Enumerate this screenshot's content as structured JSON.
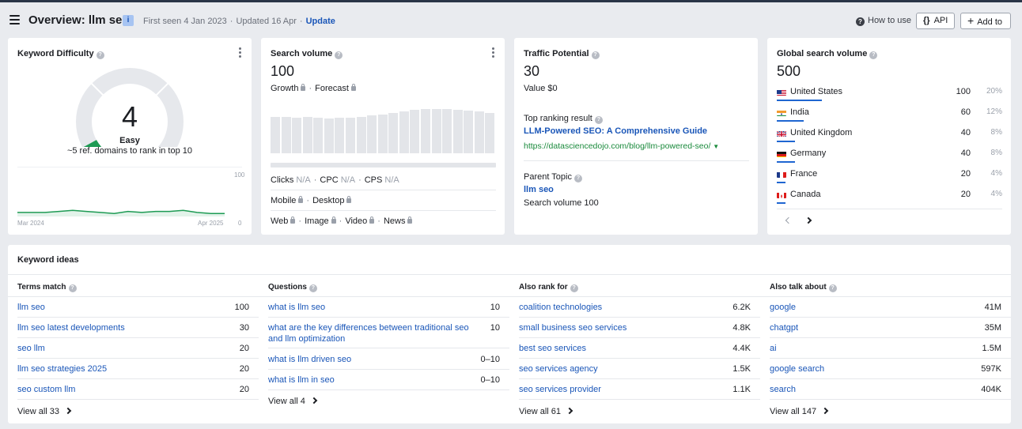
{
  "header": {
    "title": "Overview: llm seo",
    "info_badge": "i",
    "first_seen": "First seen 4 Jan 2023",
    "updated": "Updated 16 Apr",
    "update_link": "Update",
    "how_to_use": "How to use",
    "api_label": "API",
    "api_icon": "{}",
    "add_to_label": "Add to"
  },
  "keyword_difficulty": {
    "title": "Keyword Difficulty",
    "value": "4",
    "level": "Easy",
    "domains_note": "~5 ref. domains to rank in top 10",
    "gauge_fraction": 0.04,
    "trend_max_label": "100",
    "trend_min_label": "0",
    "trend_start": "Mar 2024",
    "trend_end": "Apr 2025",
    "trend_values": [
      4,
      4,
      4,
      5,
      6,
      5,
      4,
      3,
      5,
      4,
      5,
      5,
      6,
      4,
      3,
      3
    ],
    "accent_color": "#1e9b54"
  },
  "search_volume": {
    "title": "Search volume",
    "value": "100",
    "growth_label": "Growth",
    "forecast_label": "Forecast",
    "bar_heights": [
      0.75,
      0.74,
      0.73,
      0.74,
      0.72,
      0.71,
      0.73,
      0.72,
      0.75,
      0.77,
      0.79,
      0.83,
      0.86,
      0.88,
      0.9,
      0.91,
      0.9,
      0.89,
      0.87,
      0.85,
      0.82
    ],
    "clicks_label": "Clicks",
    "clicks_value": "N/A",
    "cpc_label": "CPC",
    "cpc_value": "N/A",
    "cps_label": "CPS",
    "cps_value": "N/A",
    "mobile_label": "Mobile",
    "desktop_label": "Desktop",
    "web_label": "Web",
    "image_label": "Image",
    "video_label": "Video",
    "news_label": "News"
  },
  "traffic_potential": {
    "title": "Traffic Potential",
    "value": "30",
    "value_label": "Value $0",
    "top_result_label": "Top ranking result",
    "top_result_title": "LLM-Powered SEO: A Comprehensive Guide",
    "top_result_url": "https://datasciencedojo.com/blog/llm-powered-seo/",
    "parent_topic_label": "Parent Topic",
    "parent_topic": "llm seo",
    "parent_volume": "Search volume 100"
  },
  "global_volume": {
    "title": "Global search volume",
    "value": "500",
    "countries": [
      {
        "name": "United States",
        "value": "100",
        "pct": "20%",
        "share": 0.2
      },
      {
        "name": "India",
        "value": "60",
        "pct": "12%",
        "share": 0.12
      },
      {
        "name": "United Kingdom",
        "value": "40",
        "pct": "8%",
        "share": 0.08
      },
      {
        "name": "Germany",
        "value": "40",
        "pct": "8%",
        "share": 0.08
      },
      {
        "name": "France",
        "value": "20",
        "pct": "4%",
        "share": 0.04
      },
      {
        "name": "Canada",
        "value": "20",
        "pct": "4%",
        "share": 0.04
      }
    ]
  },
  "keyword_ideas": {
    "title": "Keyword ideas",
    "columns": [
      {
        "header": "Terms match",
        "view_all": "View all 33",
        "rows": [
          {
            "term": "llm seo",
            "value": "100"
          },
          {
            "term": "llm seo latest developments",
            "value": "30"
          },
          {
            "term": "seo llm",
            "value": "20"
          },
          {
            "term": "llm seo strategies 2025",
            "value": "20"
          },
          {
            "term": "seo custom llm",
            "value": "20"
          }
        ]
      },
      {
        "header": "Questions",
        "view_all": "View all 4",
        "rows": [
          {
            "term": "what is llm seo",
            "value": "10"
          },
          {
            "term": "what are the key differences between traditional seo and llm optimization",
            "value": "10"
          },
          {
            "term": "what is llm driven seo",
            "value": "0–10"
          },
          {
            "term": "what is llm in seo",
            "value": "0–10"
          }
        ]
      },
      {
        "header": "Also rank for",
        "view_all": "View all 61",
        "rows": [
          {
            "term": "coalition technologies",
            "value": "6.2K"
          },
          {
            "term": "small business seo services",
            "value": "4.8K"
          },
          {
            "term": "best seo services",
            "value": "4.4K"
          },
          {
            "term": "seo services agency",
            "value": "1.5K"
          },
          {
            "term": "seo services provider",
            "value": "1.1K"
          }
        ]
      },
      {
        "header": "Also talk about",
        "view_all": "View all 147",
        "rows": [
          {
            "term": "google",
            "value": "41M"
          },
          {
            "term": "chatgpt",
            "value": "35M"
          },
          {
            "term": "ai",
            "value": "1.5M"
          },
          {
            "term": "google search",
            "value": "597K"
          },
          {
            "term": "search",
            "value": "404K"
          }
        ]
      }
    ]
  }
}
